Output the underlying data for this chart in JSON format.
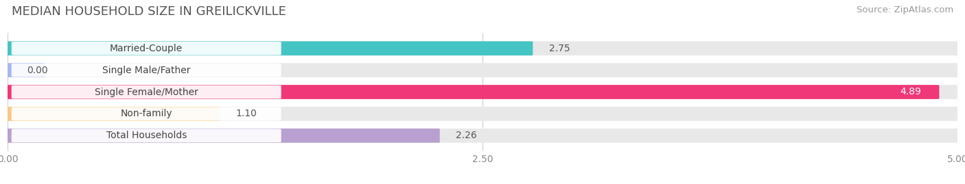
{
  "title": "MEDIAN HOUSEHOLD SIZE IN GREILICKVILLE",
  "source": "Source: ZipAtlas.com",
  "categories": [
    "Married-Couple",
    "Single Male/Father",
    "Single Female/Mother",
    "Non-family",
    "Total Households"
  ],
  "values": [
    2.75,
    0.0,
    4.89,
    1.1,
    2.26
  ],
  "bar_colors": [
    "#45c4c4",
    "#a8b8ee",
    "#f03878",
    "#f8c888",
    "#b8a0d0"
  ],
  "bar_bg_color": "#e8e8e8",
  "xlim": [
    0,
    5.0
  ],
  "xticks": [
    0.0,
    2.5,
    5.0
  ],
  "xtick_labels": [
    "0.00",
    "2.50",
    "5.00"
  ],
  "title_fontsize": 13,
  "source_fontsize": 9.5,
  "label_fontsize": 10,
  "value_fontsize": 10,
  "background_color": "#ffffff",
  "bar_height": 0.62,
  "label_bg_color": "#ffffff",
  "value_label_color_inside": "#ffffff",
  "value_label_color_outside": "#555555"
}
